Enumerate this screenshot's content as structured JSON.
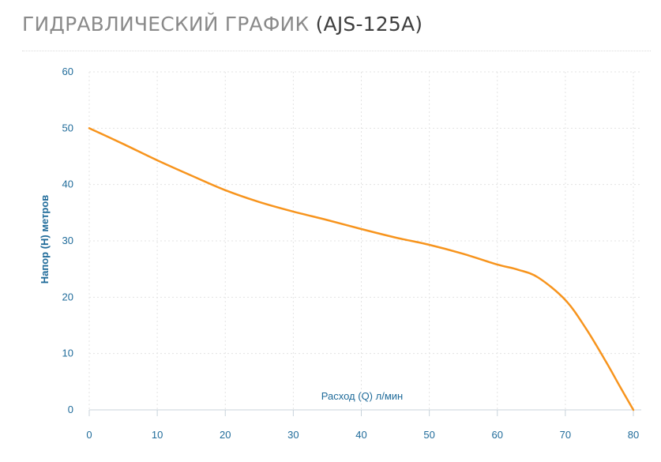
{
  "title": {
    "main": "ГИДРАВЛИЧЕСКИЙ ГРАФИК",
    "model": "(AJS-125A)"
  },
  "colors": {
    "title_main": "#8a8a8a",
    "title_model": "#3f3f3f",
    "axis_text": "#1f6b9a",
    "grid": "#e3e3e3",
    "series_line": "#f7941d"
  },
  "chart_data": {
    "type": "line",
    "title": "ГИДРАВЛИЧЕСКИЙ ГРАФИК (AJS-125A)",
    "xlabel": "Расход (Q) л/мин",
    "ylabel": "Напор (H) метров",
    "xlim": [
      0,
      80
    ],
    "ylim": [
      0,
      60
    ],
    "x_ticks": [
      0,
      10,
      20,
      30,
      40,
      50,
      60,
      70,
      80
    ],
    "y_ticks": [
      0,
      10,
      20,
      30,
      40,
      50,
      60
    ],
    "grid": true,
    "series": [
      {
        "x": [
          0,
          5,
          10,
          15,
          20,
          25,
          30,
          35,
          40,
          45,
          50,
          55,
          60,
          63,
          66,
          70,
          73,
          76,
          78,
          80
        ],
        "y": [
          50,
          47.2,
          44.3,
          41.6,
          39.0,
          36.9,
          35.2,
          33.7,
          32.1,
          30.6,
          29.3,
          27.7,
          25.8,
          24.9,
          23.5,
          19.5,
          14.5,
          8.5,
          4.2,
          0
        ]
      }
    ]
  }
}
